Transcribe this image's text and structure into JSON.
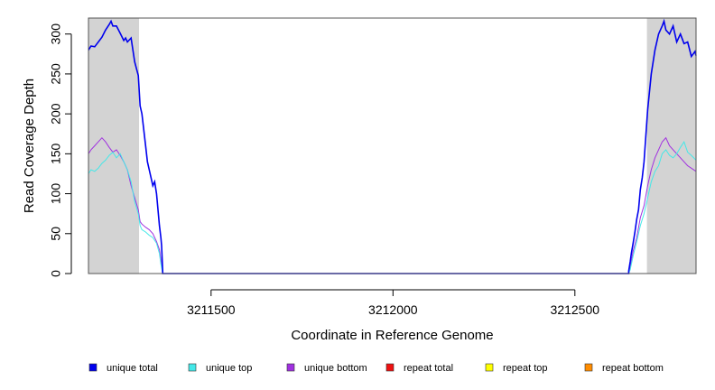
{
  "chart_data": {
    "type": "line",
    "title": "",
    "xlabel": "Coordinate in Reference Genome",
    "ylabel": "Read Coverage Depth",
    "xlim": [
      3211163,
      3212833
    ],
    "ylim": [
      0,
      320
    ],
    "x_ticks": [
      3211500,
      3212000,
      3212500
    ],
    "x_tick_labels": [
      "3211500",
      "3212000",
      "3212500"
    ],
    "y_ticks": [
      0,
      50,
      100,
      150,
      200,
      250,
      300
    ],
    "y_tick_labels": [
      "0",
      "50",
      "100",
      "150",
      "200",
      "250",
      "300"
    ],
    "shaded_regions": [
      {
        "x0": 3211163,
        "x1": 3211302,
        "color": "#d3d3d3"
      },
      {
        "x0": 3212698,
        "x1": 3212833,
        "color": "#d3d3d3"
      }
    ],
    "series": [
      {
        "name": "unique total",
        "color": "#0000ee",
        "x": [
          3211163,
          3211170,
          3211180,
          3211190,
          3211200,
          3211210,
          3211220,
          3211225,
          3211230,
          3211240,
          3211250,
          3211260,
          3211265,
          3211270,
          3211280,
          3211290,
          3211300,
          3211305,
          3211310,
          3211320,
          3211325,
          3211330,
          3211340,
          3211345,
          3211350,
          3211358,
          3211362,
          3211364,
          3211367,
          3211367,
          3212648,
          3212648,
          3212652,
          3212655,
          3212660,
          3212665,
          3212670,
          3212675,
          3212680,
          3212685,
          3212690,
          3212700,
          3212710,
          3212720,
          3212730,
          3212740,
          3212745,
          3212750,
          3212760,
          3212770,
          3212780,
          3212790,
          3212800,
          3212810,
          3212820,
          3212825,
          3212830,
          3212833
        ],
        "values": [
          280,
          285,
          284,
          290,
          296,
          305,
          312,
          316,
          310,
          310,
          301,
          292,
          295,
          290,
          295,
          265,
          248,
          210,
          200,
          160,
          140,
          130,
          110,
          115,
          100,
          60,
          45,
          35,
          3,
          0,
          0,
          3,
          15,
          25,
          38,
          52,
          68,
          80,
          105,
          120,
          140,
          205,
          250,
          280,
          300,
          310,
          316,
          305,
          300,
          310,
          290,
          300,
          288,
          290,
          272,
          275,
          278,
          273
        ]
      },
      {
        "name": "unique top",
        "color": "#44e8e8",
        "x": [
          3211163,
          3211170,
          3211180,
          3211190,
          3211200,
          3211210,
          3211220,
          3211230,
          3211240,
          3211250,
          3211260,
          3211270,
          3211280,
          3211290,
          3211300,
          3211305,
          3211310,
          3211320,
          3211330,
          3211340,
          3211350,
          3211358,
          3211362,
          3211365,
          3211367,
          3212648,
          3212652,
          3212660,
          3212670,
          3212680,
          3212690,
          3212700,
          3212710,
          3212720,
          3212730,
          3212740,
          3212750,
          3212760,
          3212770,
          3212780,
          3212790,
          3212800,
          3212810,
          3212820,
          3212833
        ],
        "values": [
          125,
          130,
          128,
          132,
          138,
          142,
          148,
          152,
          145,
          150,
          140,
          130,
          115,
          90,
          75,
          60,
          55,
          52,
          48,
          45,
          38,
          25,
          12,
          5,
          0,
          0,
          5,
          22,
          40,
          60,
          75,
          95,
          115,
          128,
          135,
          150,
          155,
          148,
          145,
          150,
          158,
          165,
          152,
          148,
          142
        ]
      },
      {
        "name": "unique bottom",
        "color": "#a030e0",
        "x": [
          3211163,
          3211170,
          3211180,
          3211190,
          3211200,
          3211210,
          3211220,
          3211230,
          3211240,
          3211250,
          3211260,
          3211270,
          3211280,
          3211290,
          3211300,
          3211305,
          3211310,
          3211320,
          3211330,
          3211340,
          3211350,
          3211358,
          3211362,
          3211365,
          3211367,
          3212648,
          3212652,
          3212660,
          3212670,
          3212680,
          3212690,
          3212700,
          3212710,
          3212720,
          3212730,
          3212740,
          3212750,
          3212760,
          3212770,
          3212780,
          3212790,
          3212800,
          3212810,
          3212820,
          3212833
        ],
        "values": [
          150,
          155,
          160,
          165,
          170,
          165,
          158,
          152,
          155,
          148,
          140,
          130,
          110,
          95,
          80,
          65,
          62,
          58,
          55,
          50,
          40,
          30,
          18,
          8,
          0,
          0,
          8,
          28,
          45,
          70,
          85,
          110,
          130,
          145,
          155,
          165,
          170,
          160,
          155,
          150,
          145,
          140,
          135,
          132,
          128
        ]
      },
      {
        "name": "repeat total",
        "color": "#ee1111",
        "x": [
          3211163,
          3212833
        ],
        "values": [
          0,
          0
        ]
      },
      {
        "name": "repeat top",
        "color": "#ffff00",
        "x": [
          3211163,
          3212833
        ],
        "values": [
          0,
          0
        ]
      },
      {
        "name": "repeat bottom",
        "color": "#ff8c00",
        "x": [
          3211163,
          3212833
        ],
        "values": [
          0,
          0
        ]
      }
    ],
    "legend_position": "bottom",
    "grid": false
  }
}
